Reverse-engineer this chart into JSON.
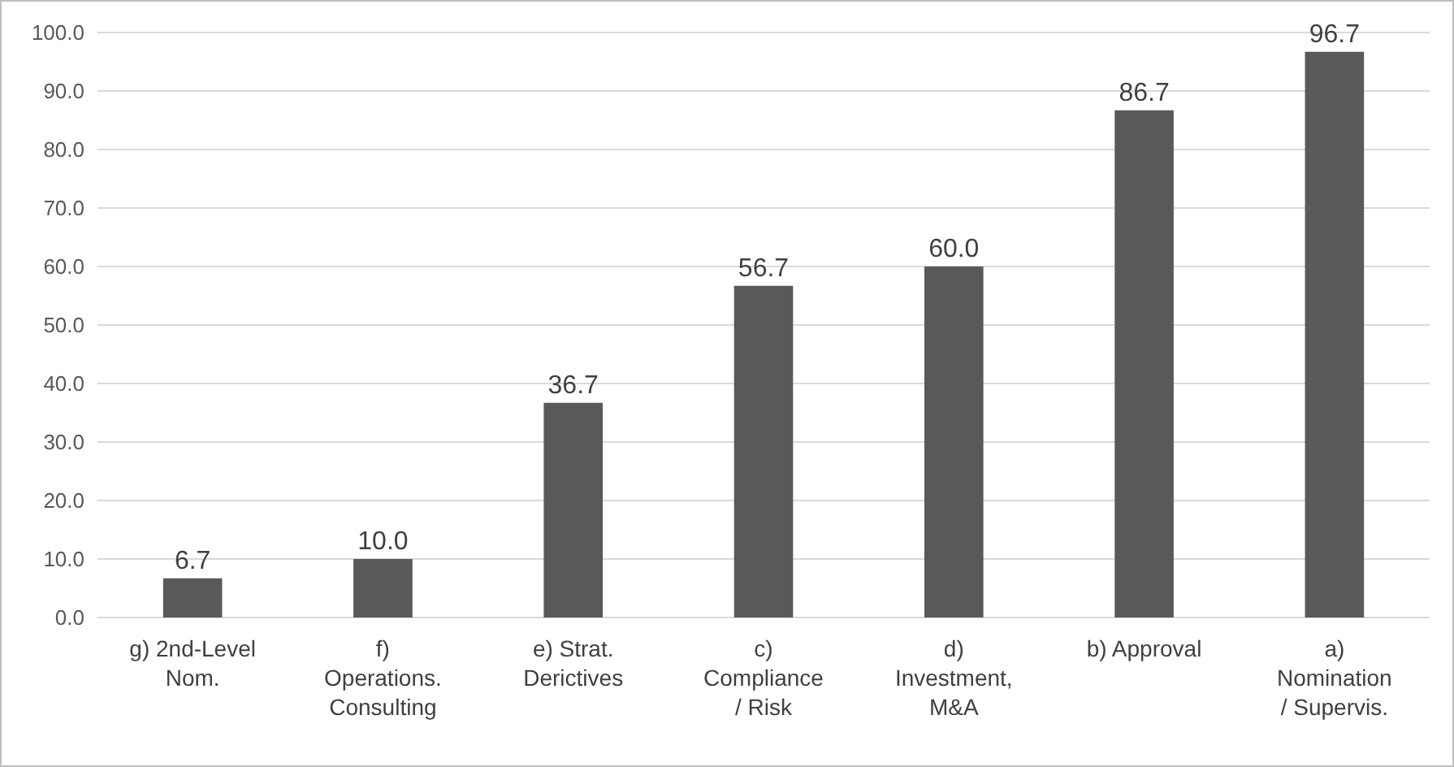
{
  "chart_data": {
    "type": "bar",
    "categories": [
      "g) 2nd-Level\nNom.",
      "f)\nOperations.\nConsulting",
      "e) Strat.\nDerictives",
      "c)\nCompliance\n/ Risk",
      "d)\nInvestment,\nM&A",
      "b) Approval",
      "a)\nNomination\n/ Supervis."
    ],
    "values": [
      6.7,
      10.0,
      36.7,
      56.7,
      60.0,
      86.7,
      96.7
    ],
    "value_labels": [
      "6.7",
      "10.0",
      "36.7",
      "56.7",
      "60.0",
      "86.7",
      "96.7"
    ],
    "color": "#595959",
    "ylim": [
      0,
      100
    ],
    "yticks": [
      {
        "value": 0,
        "label": "0.0"
      },
      {
        "value": 10,
        "label": "10.0"
      },
      {
        "value": 20,
        "label": "20.0"
      },
      {
        "value": 30,
        "label": "30.0"
      },
      {
        "value": 40,
        "label": "40.0"
      },
      {
        "value": 50,
        "label": "50.0"
      },
      {
        "value": 60,
        "label": "60.0"
      },
      {
        "value": 70,
        "label": "70.0"
      },
      {
        "value": 80,
        "label": "80.0"
      },
      {
        "value": 90,
        "label": "90.0"
      },
      {
        "value": 100,
        "label": "100.0"
      }
    ],
    "grid": "y"
  }
}
